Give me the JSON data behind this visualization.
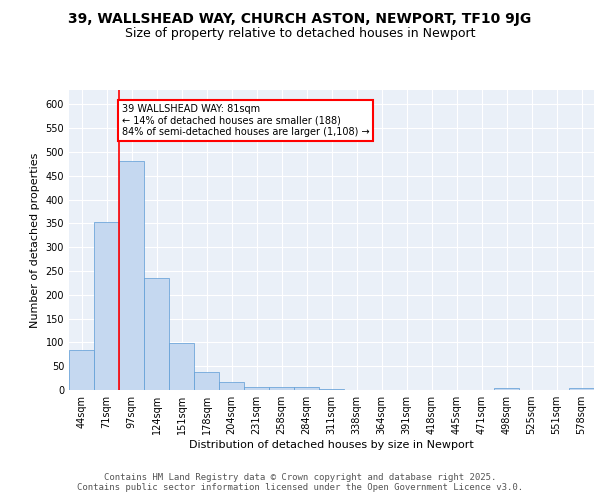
{
  "title1": "39, WALLSHEAD WAY, CHURCH ASTON, NEWPORT, TF10 9JG",
  "title2": "Size of property relative to detached houses in Newport",
  "xlabel": "Distribution of detached houses by size in Newport",
  "ylabel": "Number of detached properties",
  "bin_labels": [
    "44sqm",
    "71sqm",
    "97sqm",
    "124sqm",
    "151sqm",
    "178sqm",
    "204sqm",
    "231sqm",
    "258sqm",
    "284sqm",
    "311sqm",
    "338sqm",
    "364sqm",
    "391sqm",
    "418sqm",
    "445sqm",
    "471sqm",
    "498sqm",
    "525sqm",
    "551sqm",
    "578sqm"
  ],
  "bar_values": [
    85,
    353,
    480,
    236,
    99,
    37,
    16,
    7,
    7,
    7,
    3,
    1,
    1,
    1,
    1,
    1,
    0,
    4,
    0,
    0,
    4
  ],
  "bar_color": "#c5d8f0",
  "bar_edge_color": "#5b9bd5",
  "vline_x_pos": 1.5,
  "vline_color": "red",
  "annotation_text": "39 WALLSHEAD WAY: 81sqm\n← 14% of detached houses are smaller (188)\n84% of semi-detached houses are larger (1,108) →",
  "annotation_box_color": "white",
  "annotation_box_edge": "red",
  "ylim": [
    0,
    630
  ],
  "yticks": [
    0,
    50,
    100,
    150,
    200,
    250,
    300,
    350,
    400,
    450,
    500,
    550,
    600
  ],
  "background_color": "#eaf0f8",
  "footer_text": "Contains HM Land Registry data © Crown copyright and database right 2025.\nContains public sector information licensed under the Open Government Licence v3.0.",
  "title1_fontsize": 10,
  "title2_fontsize": 9,
  "xlabel_fontsize": 8,
  "ylabel_fontsize": 8,
  "tick_fontsize": 7,
  "footer_fontsize": 6.5,
  "annotation_fontsize": 7
}
